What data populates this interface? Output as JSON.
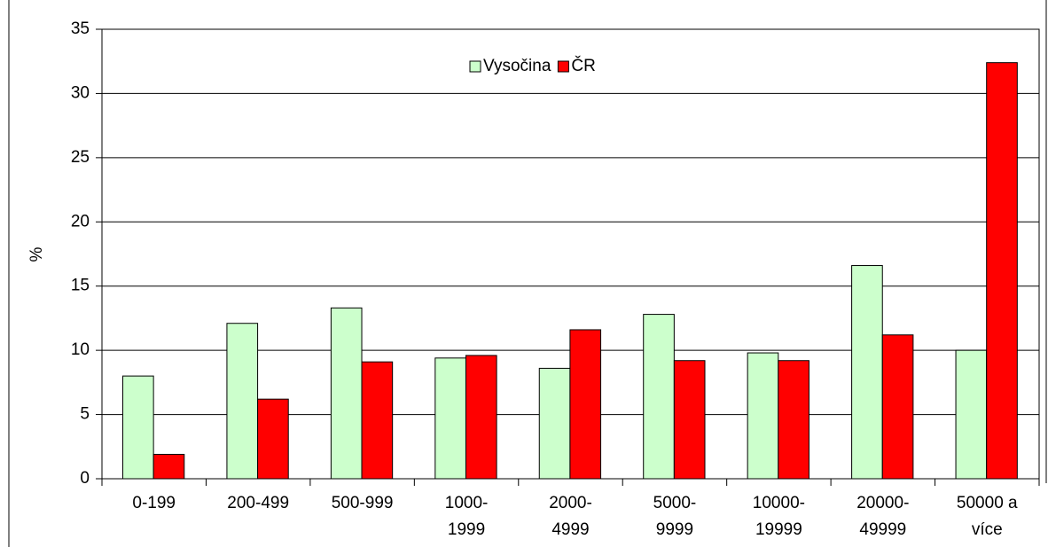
{
  "chart_data": {
    "type": "bar",
    "y_label": "%",
    "categories": [
      "0-199",
      "200-499",
      "500-999",
      "1000-1999",
      "2000-4999",
      "5000-9999",
      "10000-19999",
      "20000-49999",
      "50000 a více"
    ],
    "series": [
      {
        "name": "Vysočina",
        "color": "#ccffcc",
        "values": [
          8.0,
          12.1,
          13.3,
          9.4,
          8.6,
          12.8,
          9.8,
          16.6,
          10.0
        ]
      },
      {
        "name": "ČR",
        "color": "#ff0000",
        "values": [
          1.9,
          6.2,
          9.1,
          9.6,
          11.6,
          9.2,
          9.2,
          11.2,
          32.4
        ]
      }
    ],
    "ylim": [
      0,
      35
    ],
    "yticks": [
      0,
      5,
      10,
      15,
      20,
      25,
      30,
      35
    ],
    "grid": true,
    "legend": "top"
  }
}
